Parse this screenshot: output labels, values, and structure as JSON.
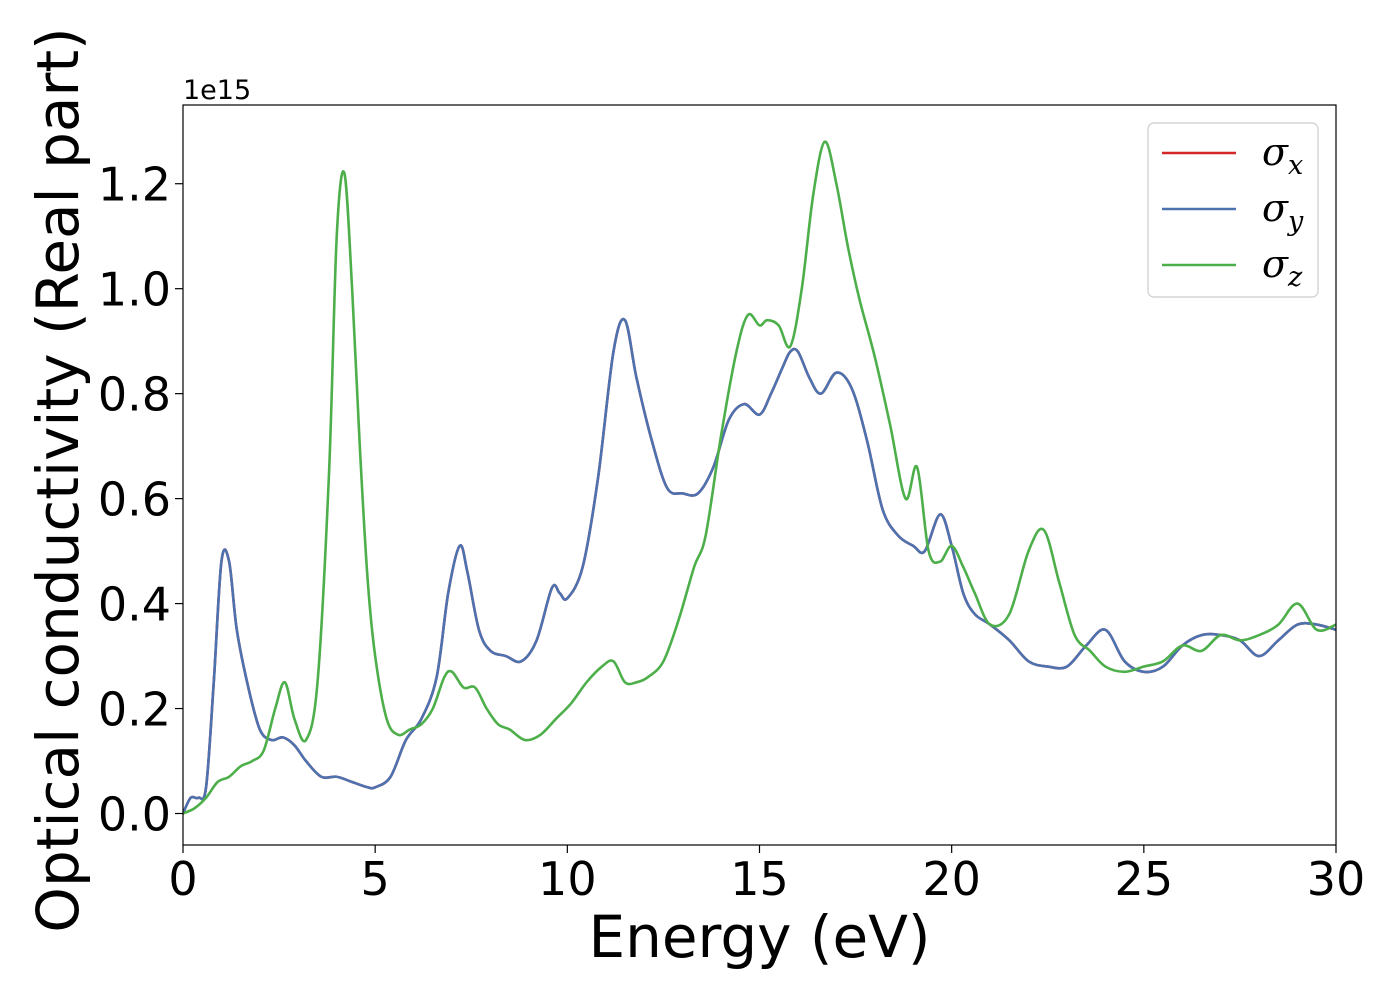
{
  "chart_data": {
    "type": "line",
    "xlabel": "Energy (eV)",
    "ylabel": "Optical conductivity (Real part)",
    "y_offset_text": "1e15",
    "xlim": [
      0,
      30
    ],
    "ylim": [
      -0.06,
      1.35
    ],
    "x_ticks": [
      0,
      5,
      10,
      15,
      20,
      25,
      30
    ],
    "x_tick_labels": [
      "0",
      "5",
      "10",
      "15",
      "20",
      "25",
      "30"
    ],
    "y_ticks": [
      0.0,
      0.2,
      0.4,
      0.6,
      0.8,
      1.0,
      1.2
    ],
    "y_tick_labels": [
      "0.0",
      "0.2",
      "0.4",
      "0.6",
      "0.8",
      "1.0",
      "1.2"
    ],
    "grid": false,
    "legend_position": "top-right",
    "series": [
      {
        "name": "σ_x",
        "legend_symbol": "σ",
        "legend_subscript": "x",
        "color": "#d62728",
        "x": [
          0,
          0.2,
          0.4,
          0.6,
          0.8,
          1.0,
          1.2,
          1.4,
          1.7,
          2.0,
          2.3,
          2.6,
          2.9,
          3.2,
          3.6,
          4.0,
          4.4,
          4.8,
          5.0,
          5.4,
          5.8,
          6.2,
          6.6,
          6.9,
          7.2,
          7.4,
          7.7,
          8.0,
          8.4,
          8.8,
          9.2,
          9.6,
          9.8,
          10.0,
          10.4,
          10.8,
          11.2,
          11.5,
          11.8,
          12.2,
          12.6,
          13.0,
          13.4,
          13.8,
          14.2,
          14.6,
          15.0,
          15.3,
          15.6,
          15.8,
          16.0,
          16.3,
          16.6,
          17.0,
          17.4,
          17.8,
          18.2,
          18.6,
          19.0,
          19.3,
          19.7,
          20.0,
          20.3,
          20.6,
          21.0,
          21.5,
          22.0,
          22.5,
          23.0,
          23.5,
          24.0,
          24.5,
          25.0,
          25.5,
          26.0,
          26.5,
          27.0,
          27.5,
          28.0,
          28.5,
          29.0,
          29.5,
          30.0
        ],
        "y": [
          0.0,
          0.03,
          0.03,
          0.05,
          0.25,
          0.48,
          0.48,
          0.35,
          0.24,
          0.16,
          0.14,
          0.145,
          0.13,
          0.1,
          0.07,
          0.07,
          0.06,
          0.05,
          0.05,
          0.07,
          0.14,
          0.18,
          0.26,
          0.42,
          0.51,
          0.46,
          0.35,
          0.31,
          0.3,
          0.29,
          0.33,
          0.43,
          0.42,
          0.41,
          0.47,
          0.64,
          0.88,
          0.94,
          0.83,
          0.71,
          0.62,
          0.61,
          0.61,
          0.66,
          0.75,
          0.78,
          0.76,
          0.8,
          0.85,
          0.88,
          0.88,
          0.83,
          0.8,
          0.84,
          0.81,
          0.71,
          0.58,
          0.53,
          0.51,
          0.5,
          0.57,
          0.51,
          0.42,
          0.38,
          0.36,
          0.33,
          0.29,
          0.28,
          0.28,
          0.32,
          0.35,
          0.29,
          0.27,
          0.28,
          0.32,
          0.34,
          0.34,
          0.33,
          0.3,
          0.33,
          0.36,
          0.36,
          0.35
        ]
      },
      {
        "name": "σ_y",
        "legend_symbol": "σ",
        "legend_subscript": "y",
        "color": "#4c72b0",
        "x": [
          0,
          0.2,
          0.4,
          0.6,
          0.8,
          1.0,
          1.2,
          1.4,
          1.7,
          2.0,
          2.3,
          2.6,
          2.9,
          3.2,
          3.6,
          4.0,
          4.4,
          4.8,
          5.0,
          5.4,
          5.8,
          6.2,
          6.6,
          6.9,
          7.2,
          7.4,
          7.7,
          8.0,
          8.4,
          8.8,
          9.2,
          9.6,
          9.8,
          10.0,
          10.4,
          10.8,
          11.2,
          11.5,
          11.8,
          12.2,
          12.6,
          13.0,
          13.4,
          13.8,
          14.2,
          14.6,
          15.0,
          15.3,
          15.6,
          15.8,
          16.0,
          16.3,
          16.6,
          17.0,
          17.4,
          17.8,
          18.2,
          18.6,
          19.0,
          19.3,
          19.7,
          20.0,
          20.3,
          20.6,
          21.0,
          21.5,
          22.0,
          22.5,
          23.0,
          23.5,
          24.0,
          24.5,
          25.0,
          25.5,
          26.0,
          26.5,
          27.0,
          27.5,
          28.0,
          28.5,
          29.0,
          29.5,
          30.0
        ],
        "y": [
          0.0,
          0.03,
          0.03,
          0.05,
          0.25,
          0.48,
          0.48,
          0.35,
          0.24,
          0.16,
          0.14,
          0.145,
          0.13,
          0.1,
          0.07,
          0.07,
          0.06,
          0.05,
          0.05,
          0.07,
          0.14,
          0.18,
          0.26,
          0.42,
          0.51,
          0.46,
          0.35,
          0.31,
          0.3,
          0.29,
          0.33,
          0.43,
          0.42,
          0.41,
          0.47,
          0.64,
          0.88,
          0.94,
          0.83,
          0.71,
          0.62,
          0.61,
          0.61,
          0.66,
          0.75,
          0.78,
          0.76,
          0.8,
          0.85,
          0.88,
          0.88,
          0.83,
          0.8,
          0.84,
          0.81,
          0.71,
          0.58,
          0.53,
          0.51,
          0.5,
          0.57,
          0.51,
          0.42,
          0.38,
          0.36,
          0.33,
          0.29,
          0.28,
          0.28,
          0.32,
          0.35,
          0.29,
          0.27,
          0.28,
          0.32,
          0.34,
          0.34,
          0.33,
          0.3,
          0.33,
          0.36,
          0.36,
          0.35
        ]
      },
      {
        "name": "σ_z",
        "legend_symbol": "σ",
        "legend_subscript": "z",
        "color": "#4daf4a",
        "x": [
          0,
          0.3,
          0.6,
          0.9,
          1.2,
          1.5,
          1.8,
          2.1,
          2.4,
          2.65,
          2.9,
          3.2,
          3.5,
          3.8,
          4.0,
          4.2,
          4.4,
          4.6,
          4.8,
          5.0,
          5.3,
          5.6,
          5.9,
          6.2,
          6.5,
          6.8,
          7.0,
          7.3,
          7.6,
          7.9,
          8.2,
          8.5,
          8.9,
          9.3,
          9.7,
          10.1,
          10.5,
          10.9,
          11.2,
          11.5,
          11.8,
          12.1,
          12.5,
          12.9,
          13.3,
          13.6,
          14.0,
          14.4,
          14.7,
          15.0,
          15.2,
          15.5,
          15.8,
          16.1,
          16.4,
          16.7,
          17.0,
          17.3,
          17.6,
          18.0,
          18.4,
          18.8,
          19.1,
          19.4,
          19.7,
          20.0,
          20.3,
          20.6,
          21.0,
          21.5,
          22.0,
          22.4,
          22.8,
          23.2,
          23.6,
          24.0,
          24.5,
          25.0,
          25.5,
          26.0,
          26.5,
          27.0,
          27.5,
          28.0,
          28.5,
          29.0,
          29.5,
          30.0
        ],
        "y": [
          0.0,
          0.01,
          0.03,
          0.06,
          0.07,
          0.09,
          0.1,
          0.12,
          0.2,
          0.25,
          0.18,
          0.14,
          0.25,
          0.65,
          1.1,
          1.22,
          1.0,
          0.7,
          0.45,
          0.3,
          0.18,
          0.15,
          0.16,
          0.17,
          0.2,
          0.26,
          0.27,
          0.24,
          0.24,
          0.2,
          0.17,
          0.16,
          0.14,
          0.15,
          0.18,
          0.21,
          0.25,
          0.28,
          0.29,
          0.25,
          0.25,
          0.26,
          0.29,
          0.37,
          0.47,
          0.53,
          0.72,
          0.88,
          0.95,
          0.93,
          0.94,
          0.93,
          0.89,
          1.0,
          1.18,
          1.28,
          1.2,
          1.08,
          0.98,
          0.87,
          0.74,
          0.6,
          0.66,
          0.5,
          0.48,
          0.51,
          0.47,
          0.42,
          0.36,
          0.38,
          0.5,
          0.54,
          0.44,
          0.34,
          0.31,
          0.28,
          0.27,
          0.28,
          0.29,
          0.32,
          0.31,
          0.34,
          0.33,
          0.34,
          0.36,
          0.4,
          0.35,
          0.36
        ]
      }
    ]
  }
}
